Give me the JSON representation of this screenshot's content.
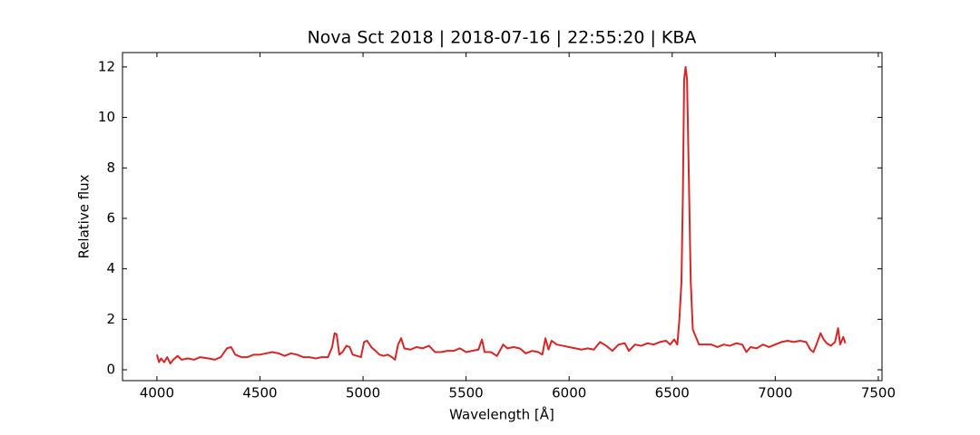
{
  "chart_data": {
    "type": "line",
    "title": "Nova Sct 2018 | 2018-07-16 | 22:55:20 | KBA",
    "x_label": "Wavelength [Å]",
    "y_label": "Relative flux",
    "color": "#d62728",
    "tick_direction": "in",
    "x": [
      4000,
      4010,
      4020,
      4035,
      4050,
      4065,
      4080,
      4100,
      4120,
      4150,
      4180,
      4210,
      4250,
      4280,
      4310,
      4340,
      4360,
      4380,
      4410,
      4440,
      4470,
      4500,
      4530,
      4560,
      4590,
      4620,
      4650,
      4680,
      4710,
      4740,
      4770,
      4800,
      4830,
      4850,
      4862,
      4872,
      4885,
      4900,
      4920,
      4935,
      4950,
      4970,
      4990,
      5005,
      5020,
      5040,
      5060,
      5080,
      5100,
      5120,
      5140,
      5155,
      5170,
      5185,
      5200,
      5230,
      5260,
      5290,
      5320,
      5350,
      5380,
      5410,
      5440,
      5470,
      5500,
      5530,
      5560,
      5577,
      5590,
      5620,
      5650,
      5680,
      5700,
      5730,
      5760,
      5790,
      5820,
      5850,
      5870,
      5885,
      5900,
      5915,
      5940,
      5970,
      6000,
      6030,
      6060,
      6090,
      6120,
      6150,
      6180,
      6210,
      6240,
      6270,
      6290,
      6320,
      6350,
      6380,
      6410,
      6440,
      6470,
      6490,
      6510,
      6525,
      6535,
      6545,
      6552,
      6558,
      6565,
      6572,
      6580,
      6590,
      6600,
      6615,
      6630,
      6660,
      6690,
      6720,
      6750,
      6780,
      6810,
      6840,
      6860,
      6880,
      6910,
      6940,
      6970,
      7000,
      7030,
      7060,
      7090,
      7120,
      7150,
      7170,
      7185,
      7200,
      7220,
      7235,
      7250,
      7270,
      7290,
      7305,
      7315,
      7330,
      7340
    ],
    "values": [
      0.6,
      0.3,
      0.45,
      0.3,
      0.5,
      0.25,
      0.4,
      0.55,
      0.4,
      0.45,
      0.4,
      0.5,
      0.45,
      0.4,
      0.5,
      0.85,
      0.9,
      0.6,
      0.5,
      0.5,
      0.6,
      0.6,
      0.65,
      0.7,
      0.65,
      0.55,
      0.65,
      0.6,
      0.5,
      0.5,
      0.45,
      0.5,
      0.5,
      0.9,
      1.45,
      1.4,
      0.6,
      0.7,
      0.95,
      0.9,
      0.6,
      0.55,
      0.5,
      1.1,
      1.15,
      0.9,
      0.75,
      0.6,
      0.55,
      0.6,
      0.5,
      0.4,
      1.0,
      1.25,
      0.85,
      0.8,
      0.9,
      0.85,
      0.95,
      0.7,
      0.7,
      0.75,
      0.75,
      0.85,
      0.7,
      0.75,
      0.8,
      1.2,
      0.7,
      0.7,
      0.55,
      1.0,
      0.85,
      0.9,
      0.85,
      0.65,
      0.75,
      0.7,
      0.6,
      1.25,
      0.8,
      1.15,
      1.0,
      0.95,
      0.9,
      0.85,
      0.8,
      0.85,
      0.8,
      1.1,
      0.95,
      0.75,
      1.0,
      1.05,
      0.75,
      1.0,
      0.95,
      1.05,
      1.0,
      1.1,
      1.15,
      1.0,
      1.2,
      1.0,
      2.0,
      3.5,
      7.0,
      11.5,
      12.0,
      11.5,
      8.0,
      3.5,
      1.6,
      1.3,
      1.0,
      1.0,
      1.0,
      0.9,
      1.0,
      0.95,
      1.05,
      1.0,
      0.7,
      0.9,
      0.85,
      1.0,
      0.9,
      1.0,
      1.1,
      1.15,
      1.1,
      1.15,
      1.1,
      0.8,
      0.7,
      1.0,
      1.45,
      1.2,
      1.05,
      0.95,
      1.1,
      1.65,
      1.0,
      1.3,
      1.05
    ],
    "xlim": [
      3833,
      7518
    ],
    "xticks": [
      4000,
      4500,
      5000,
      5500,
      6000,
      6500,
      7000,
      7500
    ],
    "ylim": [
      -0.43,
      12.57
    ],
    "yticks": [
      0,
      2,
      4,
      6,
      8,
      10,
      12
    ]
  }
}
